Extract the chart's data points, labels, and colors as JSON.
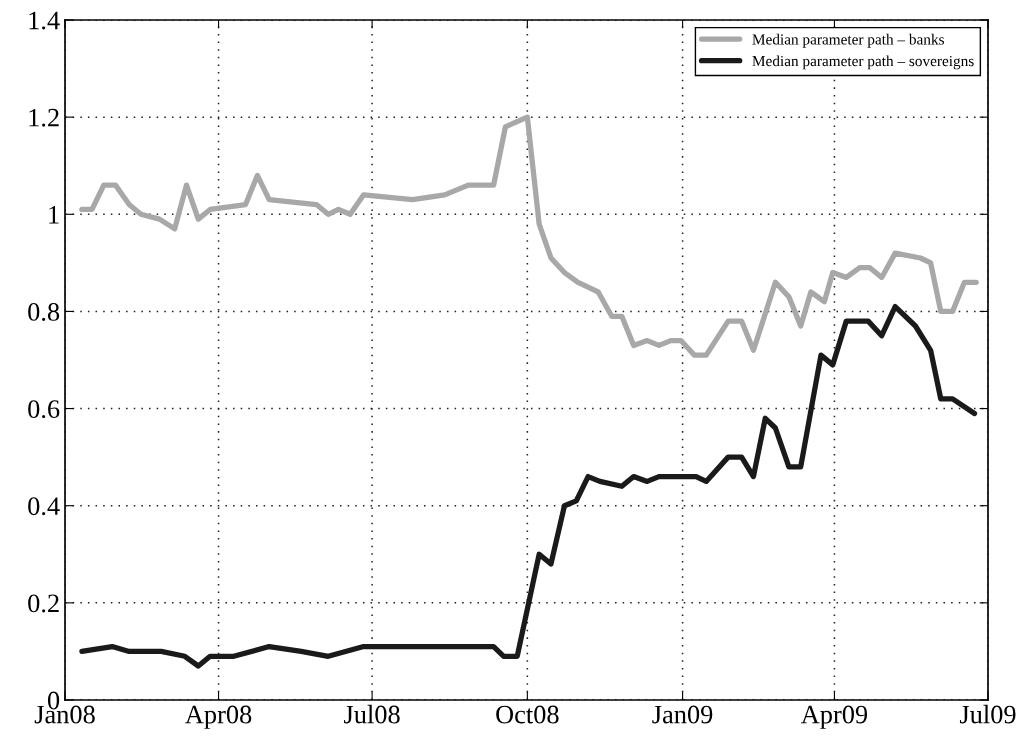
{
  "chart_data": {
    "type": "line",
    "xlim": [
      "2008-01-01",
      "2009-07-01"
    ],
    "xticks": [
      {
        "value": "2008-01-01",
        "label": "Jan08"
      },
      {
        "value": "2008-04-01",
        "label": "Apr08"
      },
      {
        "value": "2008-07-01",
        "label": "Jul08"
      },
      {
        "value": "2008-10-01",
        "label": "Oct08"
      },
      {
        "value": "2009-01-01",
        "label": "Jan09"
      },
      {
        "value": "2009-04-01",
        "label": "Apr09"
      },
      {
        "value": "2009-07-01",
        "label": "Jul09"
      }
    ],
    "ylim": [
      0,
      1.4
    ],
    "yticks": [
      0,
      0.2,
      0.4,
      0.6,
      0.8,
      1,
      1.2,
      1.4
    ],
    "grid": true,
    "legend": "top right",
    "line_style": "solid",
    "marker": "none",
    "series": [
      {
        "name": "Median parameter path – banks",
        "color": "#a8a8aa",
        "x": [
          "2008-01-11",
          "2008-01-17",
          "2008-01-24",
          "2008-01-31",
          "2008-02-08",
          "2008-02-15",
          "2008-02-26",
          "2008-03-06",
          "2008-03-13",
          "2008-03-20",
          "2008-03-27",
          "2008-04-17",
          "2008-04-24",
          "2008-05-01",
          "2008-05-29",
          "2008-06-05",
          "2008-06-11",
          "2008-06-18",
          "2008-06-26",
          "2008-07-25",
          "2008-08-13",
          "2008-08-27",
          "2008-09-11",
          "2008-09-18",
          "2008-10-01",
          "2008-10-08",
          "2008-10-15",
          "2008-10-23",
          "2008-10-31",
          "2008-11-06",
          "2008-11-12",
          "2008-11-20",
          "2008-11-26",
          "2008-12-03",
          "2008-12-11",
          "2008-12-18",
          "2008-12-25",
          "2008-12-31",
          "2009-01-08",
          "2009-01-15",
          "2009-01-28",
          "2009-02-05",
          "2009-02-12",
          "2009-02-25",
          "2009-03-05",
          "2009-03-12",
          "2009-03-18",
          "2009-03-26",
          "2009-03-31",
          "2009-04-08",
          "2009-04-16",
          "2009-04-22",
          "2009-04-29",
          "2009-05-07",
          "2009-05-22",
          "2009-05-28",
          "2009-06-03",
          "2009-06-10",
          "2009-06-17",
          "2009-06-24"
        ],
        "values": [
          1.01,
          1.01,
          1.06,
          1.06,
          1.02,
          1.0,
          0.99,
          0.97,
          1.06,
          0.99,
          1.01,
          1.02,
          1.08,
          1.03,
          1.02,
          1.0,
          1.01,
          1.0,
          1.04,
          1.03,
          1.04,
          1.06,
          1.06,
          1.18,
          1.2,
          0.98,
          0.91,
          0.88,
          0.86,
          0.85,
          0.84,
          0.79,
          0.79,
          0.73,
          0.74,
          0.73,
          0.74,
          0.74,
          0.71,
          0.71,
          0.78,
          0.78,
          0.72,
          0.86,
          0.83,
          0.77,
          0.84,
          0.82,
          0.88,
          0.87,
          0.89,
          0.89,
          0.87,
          0.92,
          0.91,
          0.9,
          0.8,
          0.8,
          0.86,
          0.86
        ]
      },
      {
        "name": "Median parameter path – sovereigns",
        "color": "#1a1a1a",
        "x": [
          "2008-01-11",
          "2008-01-29",
          "2008-02-08",
          "2008-02-27",
          "2008-03-12",
          "2008-03-20",
          "2008-03-27",
          "2008-04-10",
          "2008-05-01",
          "2008-05-20",
          "2008-06-05",
          "2008-06-26",
          "2008-07-14",
          "2008-08-06",
          "2008-09-11",
          "2008-09-17",
          "2008-09-25",
          "2008-10-08",
          "2008-10-15",
          "2008-10-23",
          "2008-10-30",
          "2008-11-06",
          "2008-11-13",
          "2008-11-26",
          "2008-12-03",
          "2008-12-11",
          "2008-12-18",
          "2008-12-31",
          "2009-01-09",
          "2009-01-15",
          "2009-01-28",
          "2009-02-05",
          "2009-02-12",
          "2009-02-19",
          "2009-02-25",
          "2009-03-05",
          "2009-03-12",
          "2009-03-24",
          "2009-03-31",
          "2009-04-08",
          "2009-04-21",
          "2009-04-29",
          "2009-05-07",
          "2009-05-19",
          "2009-05-28",
          "2009-06-03",
          "2009-06-10",
          "2009-06-23"
        ],
        "values": [
          0.1,
          0.11,
          0.1,
          0.1,
          0.09,
          0.07,
          0.09,
          0.09,
          0.11,
          0.1,
          0.09,
          0.11,
          0.11,
          0.11,
          0.11,
          0.09,
          0.09,
          0.3,
          0.28,
          0.4,
          0.41,
          0.46,
          0.45,
          0.44,
          0.46,
          0.45,
          0.46,
          0.46,
          0.46,
          0.45,
          0.5,
          0.5,
          0.46,
          0.58,
          0.56,
          0.48,
          0.48,
          0.71,
          0.69,
          0.78,
          0.78,
          0.75,
          0.81,
          0.77,
          0.72,
          0.62,
          0.62,
          0.59
        ]
      }
    ]
  }
}
